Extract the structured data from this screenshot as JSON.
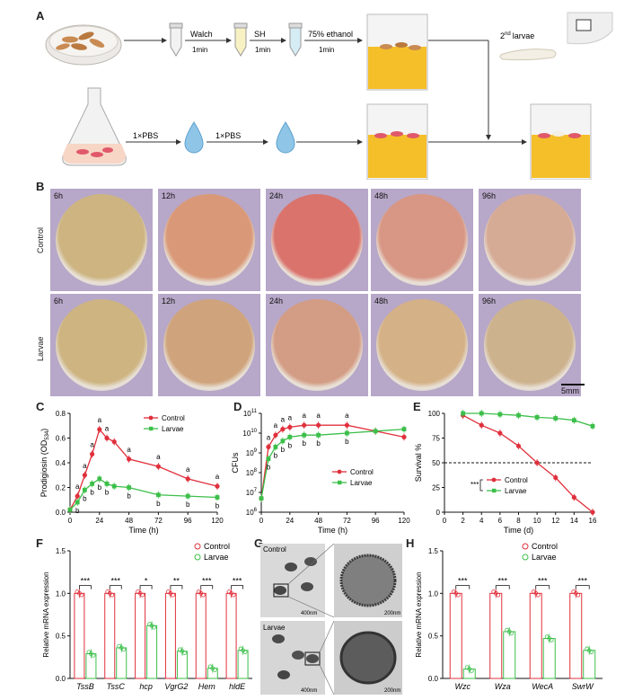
{
  "panels": {
    "A": "A",
    "B": "B",
    "C": "C",
    "D": "D",
    "E": "E",
    "F": "F",
    "G": "G",
    "H": "H"
  },
  "panelA": {
    "step_walch": "Walch",
    "step_sh": "SH",
    "step_ethanol": "75% ethanol",
    "time1": "1min",
    "time2": "1min",
    "time3": "1min",
    "larvae_prefix": "2",
    "larvae_sup": "nd",
    "larvae_suffix": "larvae",
    "pbs1": "1×PBS",
    "pbs2": "1×PBS"
  },
  "panelB": {
    "rows": [
      "Control",
      "Larvae"
    ],
    "times": [
      "6h",
      "12h",
      "24h",
      "48h",
      "96h"
    ],
    "scale": "5mm",
    "colors": {
      "control": [
        "#cdb481",
        "#d99978",
        "#d9736b",
        "#d79784",
        "#d6ab96"
      ],
      "larvae": [
        "#cdb481",
        "#cfa47c",
        "#d39c84",
        "#d4b186",
        "#cdb28e"
      ]
    }
  },
  "chart_data": [
    {
      "id": "C",
      "type": "line",
      "ylabel_main": "Prodigiosin (OD",
      "ylabel_sub": "534",
      "ylabel_end": ")",
      "xlabel": "Time (h)",
      "xlim": [
        0,
        120
      ],
      "ylim": [
        0,
        0.8
      ],
      "xticks": [
        0,
        24,
        48,
        72,
        96,
        120
      ],
      "yticks": [
        0,
        0.2,
        0.4,
        0.6,
        0.8
      ],
      "ytick_labels": [
        "0.0",
        "0.2",
        "0.4",
        "0.6",
        "0.8"
      ],
      "legend": [
        "Control",
        "Larvae"
      ],
      "x": [
        0,
        6,
        12,
        18,
        24,
        30,
        36,
        48,
        72,
        96,
        120
      ],
      "series": [
        {
          "name": "Control",
          "color": "#e0303c",
          "values": [
            0.02,
            0.13,
            0.3,
            0.47,
            0.67,
            0.6,
            0.57,
            0.43,
            0.37,
            0.27,
            0.21
          ],
          "letters": [
            "",
            "a",
            "a",
            "a",
            "a",
            "a",
            "",
            "a",
            "a",
            "a",
            "a"
          ]
        },
        {
          "name": "Larvae",
          "color": "#3cbf4a",
          "values": [
            0.02,
            0.08,
            0.18,
            0.23,
            0.27,
            0.23,
            0.21,
            0.2,
            0.14,
            0.13,
            0.12
          ],
          "letters": [
            "",
            "b",
            "b",
            "b",
            "b",
            "b",
            "",
            "b",
            "b",
            "b",
            "b"
          ]
        }
      ]
    },
    {
      "id": "D",
      "type": "line",
      "yscale": "log",
      "ylabel": "CFUs",
      "xlabel": "Time (h)",
      "xlim": [
        0,
        120
      ],
      "ylim": [
        6,
        11
      ],
      "xticks": [
        0,
        24,
        48,
        72,
        96,
        120
      ],
      "yticks": [
        6,
        7,
        8,
        9,
        10,
        11
      ],
      "ytick_base": "10",
      "legend": [
        "Control",
        "Larvae"
      ],
      "x": [
        0,
        6,
        12,
        18,
        24,
        36,
        48,
        72,
        96,
        120
      ],
      "series": [
        {
          "name": "Control",
          "color": "#e0303c",
          "values": [
            6.7,
            9.3,
            9.9,
            10.2,
            10.3,
            10.4,
            10.4,
            10.4,
            10.1,
            9.8
          ],
          "letters": [
            "",
            "a",
            "a",
            "a",
            "a",
            "a",
            "a",
            "a",
            "",
            ""
          ]
        },
        {
          "name": "Larvae",
          "color": "#3cbf4a",
          "values": [
            6.7,
            8.7,
            9.3,
            9.6,
            9.8,
            9.9,
            9.9,
            10.0,
            10.1,
            10.2
          ],
          "letters": [
            "",
            "b",
            "b",
            "b",
            "b",
            "b",
            "b",
            "b",
            "",
            ""
          ]
        }
      ]
    },
    {
      "id": "E",
      "type": "line",
      "ylabel": "Survival %",
      "xlabel": "Time (d)",
      "xlim": [
        0,
        16
      ],
      "ylim": [
        0,
        100
      ],
      "xticks": [
        0,
        2,
        4,
        6,
        8,
        10,
        12,
        14,
        16
      ],
      "yticks": [
        0,
        25,
        50,
        75,
        100
      ],
      "reference_line": 50,
      "significance": "***",
      "legend": [
        "Control",
        "Larvae"
      ],
      "x": [
        2,
        4,
        6,
        8,
        10,
        12,
        14,
        16
      ],
      "series": [
        {
          "name": "Control",
          "color": "#e0303c",
          "values": [
            98,
            88,
            80,
            67,
            50,
            35,
            15,
            0
          ]
        },
        {
          "name": "Larvae",
          "color": "#3cbf4a",
          "values": [
            100,
            100,
            99,
            98,
            96,
            95,
            93,
            87
          ]
        }
      ]
    },
    {
      "id": "F",
      "type": "bar",
      "ylabel": "Relative mRNA expression",
      "ylim": [
        0,
        1.5
      ],
      "yticks": [
        0,
        0.5,
        1.0,
        1.5
      ],
      "ytick_labels": [
        "0.0",
        "0.5",
        "1.0",
        "1.5"
      ],
      "categories": [
        "TssB",
        "TssC",
        "hcp",
        "VgrG2",
        "Hem",
        "hldE"
      ],
      "legend": [
        "Control",
        "Larvae"
      ],
      "significance": [
        "***",
        "***",
        "*",
        "**",
        "***",
        "***"
      ],
      "series": [
        {
          "name": "Control",
          "color": "#e0303c",
          "values": [
            1.0,
            1.0,
            1.0,
            1.0,
            1.0,
            1.0
          ]
        },
        {
          "name": "Larvae",
          "color": "#3cbf4a",
          "values": [
            0.29,
            0.36,
            0.62,
            0.32,
            0.12,
            0.33
          ]
        }
      ]
    },
    {
      "id": "H",
      "type": "bar",
      "ylabel": "Relative mRNA expression",
      "ylim": [
        0,
        1.5
      ],
      "yticks": [
        0,
        0.5,
        1.0,
        1.5
      ],
      "ytick_labels": [
        "0.0",
        "0.5",
        "1.0",
        "1.5"
      ],
      "categories": [
        "Wzc",
        "Wza",
        "WecA",
        "SwrW"
      ],
      "legend": [
        "Control",
        "Larvae"
      ],
      "significance": [
        "***",
        "***",
        "***",
        "***"
      ],
      "series": [
        {
          "name": "Control",
          "color": "#e0303c",
          "values": [
            1.0,
            1.0,
            1.0,
            1.0
          ]
        },
        {
          "name": "Larvae",
          "color": "#3cbf4a",
          "values": [
            0.11,
            0.55,
            0.47,
            0.33
          ]
        }
      ]
    }
  ],
  "panelG": {
    "control": "Control",
    "larvae": "Larvae",
    "scale_left": "400nm",
    "scale_right": "200nm"
  }
}
